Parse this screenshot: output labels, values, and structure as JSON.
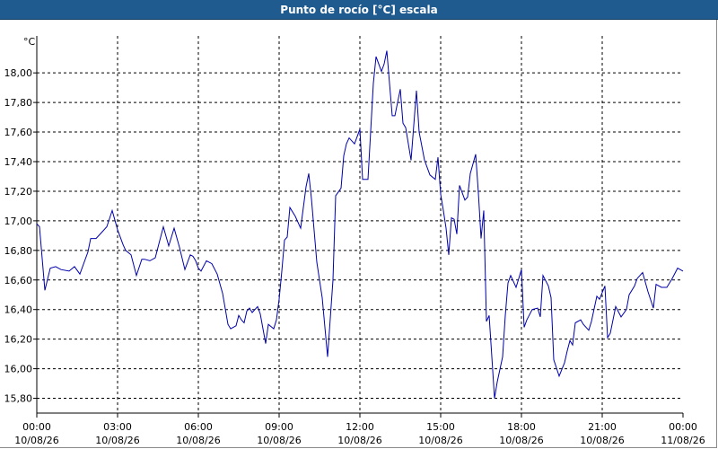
{
  "window": {
    "title": "Punto de rocío [°C] escala"
  },
  "chart_data": {
    "type": "line",
    "title": "Punto de rocío [°C] escala",
    "ylabel": "°C",
    "xlabel": "",
    "ylim": [
      15.7,
      18.25
    ],
    "xlim_hours": [
      0,
      24
    ],
    "grid": true,
    "y_ticks": [
      "15,80",
      "16,00",
      "16,20",
      "16,40",
      "16,60",
      "16,80",
      "17,00",
      "17,20",
      "17,40",
      "17,60",
      "17,80",
      "18,00"
    ],
    "y_tick_values": [
      15.8,
      16.0,
      16.2,
      16.4,
      16.6,
      16.8,
      17.0,
      17.2,
      17.4,
      17.6,
      17.8,
      18.0
    ],
    "x_ticks": [
      {
        "time": "00:00",
        "date": "10/08/26",
        "hour": 0
      },
      {
        "time": "03:00",
        "date": "10/08/26",
        "hour": 3
      },
      {
        "time": "06:00",
        "date": "10/08/26",
        "hour": 6
      },
      {
        "time": "09:00",
        "date": "10/08/26",
        "hour": 9
      },
      {
        "time": "12:00",
        "date": "10/08/26",
        "hour": 12
      },
      {
        "time": "15:00",
        "date": "10/08/26",
        "hour": 15
      },
      {
        "time": "18:00",
        "date": "10/08/26",
        "hour": 18
      },
      {
        "time": "21:00",
        "date": "10/08/26",
        "hour": 21
      },
      {
        "time": "00:00",
        "date": "11/08/26",
        "hour": 24
      }
    ],
    "series": [
      {
        "color": "#0000aa",
        "x_hours": [
          0.0,
          0.1,
          0.3,
          0.5,
          0.7,
          0.9,
          1.2,
          1.4,
          1.6,
          1.9,
          2.0,
          2.2,
          2.4,
          2.6,
          2.8,
          3.0,
          3.2,
          3.3,
          3.5,
          3.7,
          3.9,
          4.0,
          4.2,
          4.4,
          4.5,
          4.7,
          4.9,
          5.1,
          5.3,
          5.5,
          5.7,
          5.8,
          5.9,
          6.0,
          6.1,
          6.3,
          6.5,
          6.7,
          6.9,
          7.1,
          7.2,
          7.4,
          7.5,
          7.6,
          7.7,
          7.8,
          7.9,
          8.0,
          8.2,
          8.3,
          8.5,
          8.6,
          8.8,
          8.9,
          9.0,
          9.1,
          9.2,
          9.3,
          9.4,
          9.6,
          9.8,
          10.0,
          10.1,
          10.2,
          10.4,
          10.5,
          10.6,
          10.8,
          11.0,
          11.1,
          11.3,
          11.4,
          11.5,
          11.6,
          11.8,
          12.0,
          12.1,
          12.3,
          12.5,
          12.6,
          12.8,
          12.9,
          13.0,
          13.2,
          13.3,
          13.5,
          13.6,
          13.7,
          13.9,
          14.1,
          14.2,
          14.4,
          14.6,
          14.8,
          14.9,
          15.0,
          15.1,
          15.2,
          15.3,
          15.4,
          15.5,
          15.6,
          15.7,
          15.9,
          16.0,
          16.1,
          16.3,
          16.4,
          16.5,
          16.6,
          16.7,
          16.8,
          17.0,
          17.1,
          17.3,
          17.4,
          17.5,
          17.6,
          17.8,
          18.0,
          18.1,
          18.2,
          18.4,
          18.6,
          18.7,
          18.8,
          19.0,
          19.1,
          19.2,
          19.4,
          19.6,
          19.7,
          19.8,
          19.9,
          20.0,
          20.2,
          20.3,
          20.5,
          20.6,
          20.8,
          20.9,
          21.1,
          21.2,
          21.3,
          21.5,
          21.7,
          21.9,
          22.0,
          22.2,
          22.3,
          22.5,
          22.7,
          22.9,
          23.0,
          23.2,
          23.4,
          23.6,
          23.8,
          24.0
        ],
        "values": [
          16.98,
          16.96,
          16.53,
          16.68,
          16.69,
          16.67,
          16.66,
          16.69,
          16.64,
          16.79,
          16.88,
          16.88,
          16.92,
          16.96,
          17.07,
          16.94,
          16.84,
          16.8,
          16.77,
          16.63,
          16.74,
          16.74,
          16.73,
          16.75,
          16.82,
          16.96,
          16.83,
          16.95,
          16.82,
          16.67,
          16.77,
          16.76,
          16.73,
          16.68,
          16.66,
          16.73,
          16.71,
          16.64,
          16.51,
          16.3,
          16.27,
          16.29,
          16.36,
          16.33,
          16.31,
          16.39,
          16.41,
          16.38,
          16.42,
          16.37,
          16.17,
          16.3,
          16.27,
          16.33,
          16.47,
          16.66,
          16.87,
          16.89,
          17.09,
          17.03,
          16.95,
          17.23,
          17.32,
          17.15,
          16.72,
          16.6,
          16.48,
          16.08,
          16.6,
          17.17,
          17.22,
          17.44,
          17.52,
          17.56,
          17.52,
          17.62,
          17.28,
          17.28,
          17.93,
          18.11,
          18.01,
          18.06,
          18.15,
          17.71,
          17.71,
          17.89,
          17.66,
          17.63,
          17.41,
          17.88,
          17.6,
          17.41,
          17.31,
          17.28,
          17.43,
          17.18,
          17.07,
          16.95,
          16.77,
          17.02,
          17.01,
          16.91,
          17.24,
          17.14,
          17.16,
          17.32,
          17.45,
          17.19,
          16.88,
          17.07,
          16.32,
          16.36,
          15.8,
          15.91,
          16.08,
          16.36,
          16.58,
          16.63,
          16.55,
          16.67,
          16.28,
          16.33,
          16.4,
          16.41,
          16.35,
          16.63,
          16.56,
          16.48,
          16.06,
          15.95,
          16.04,
          16.12,
          16.19,
          16.16,
          16.31,
          16.33,
          16.3,
          16.26,
          16.32,
          16.49,
          16.47,
          16.56,
          16.21,
          16.24,
          16.42,
          16.35,
          16.4,
          16.5,
          16.56,
          16.61,
          16.65,
          16.52,
          16.41,
          16.57,
          16.55,
          16.55,
          16.61,
          16.68,
          16.66
        ]
      }
    ]
  }
}
